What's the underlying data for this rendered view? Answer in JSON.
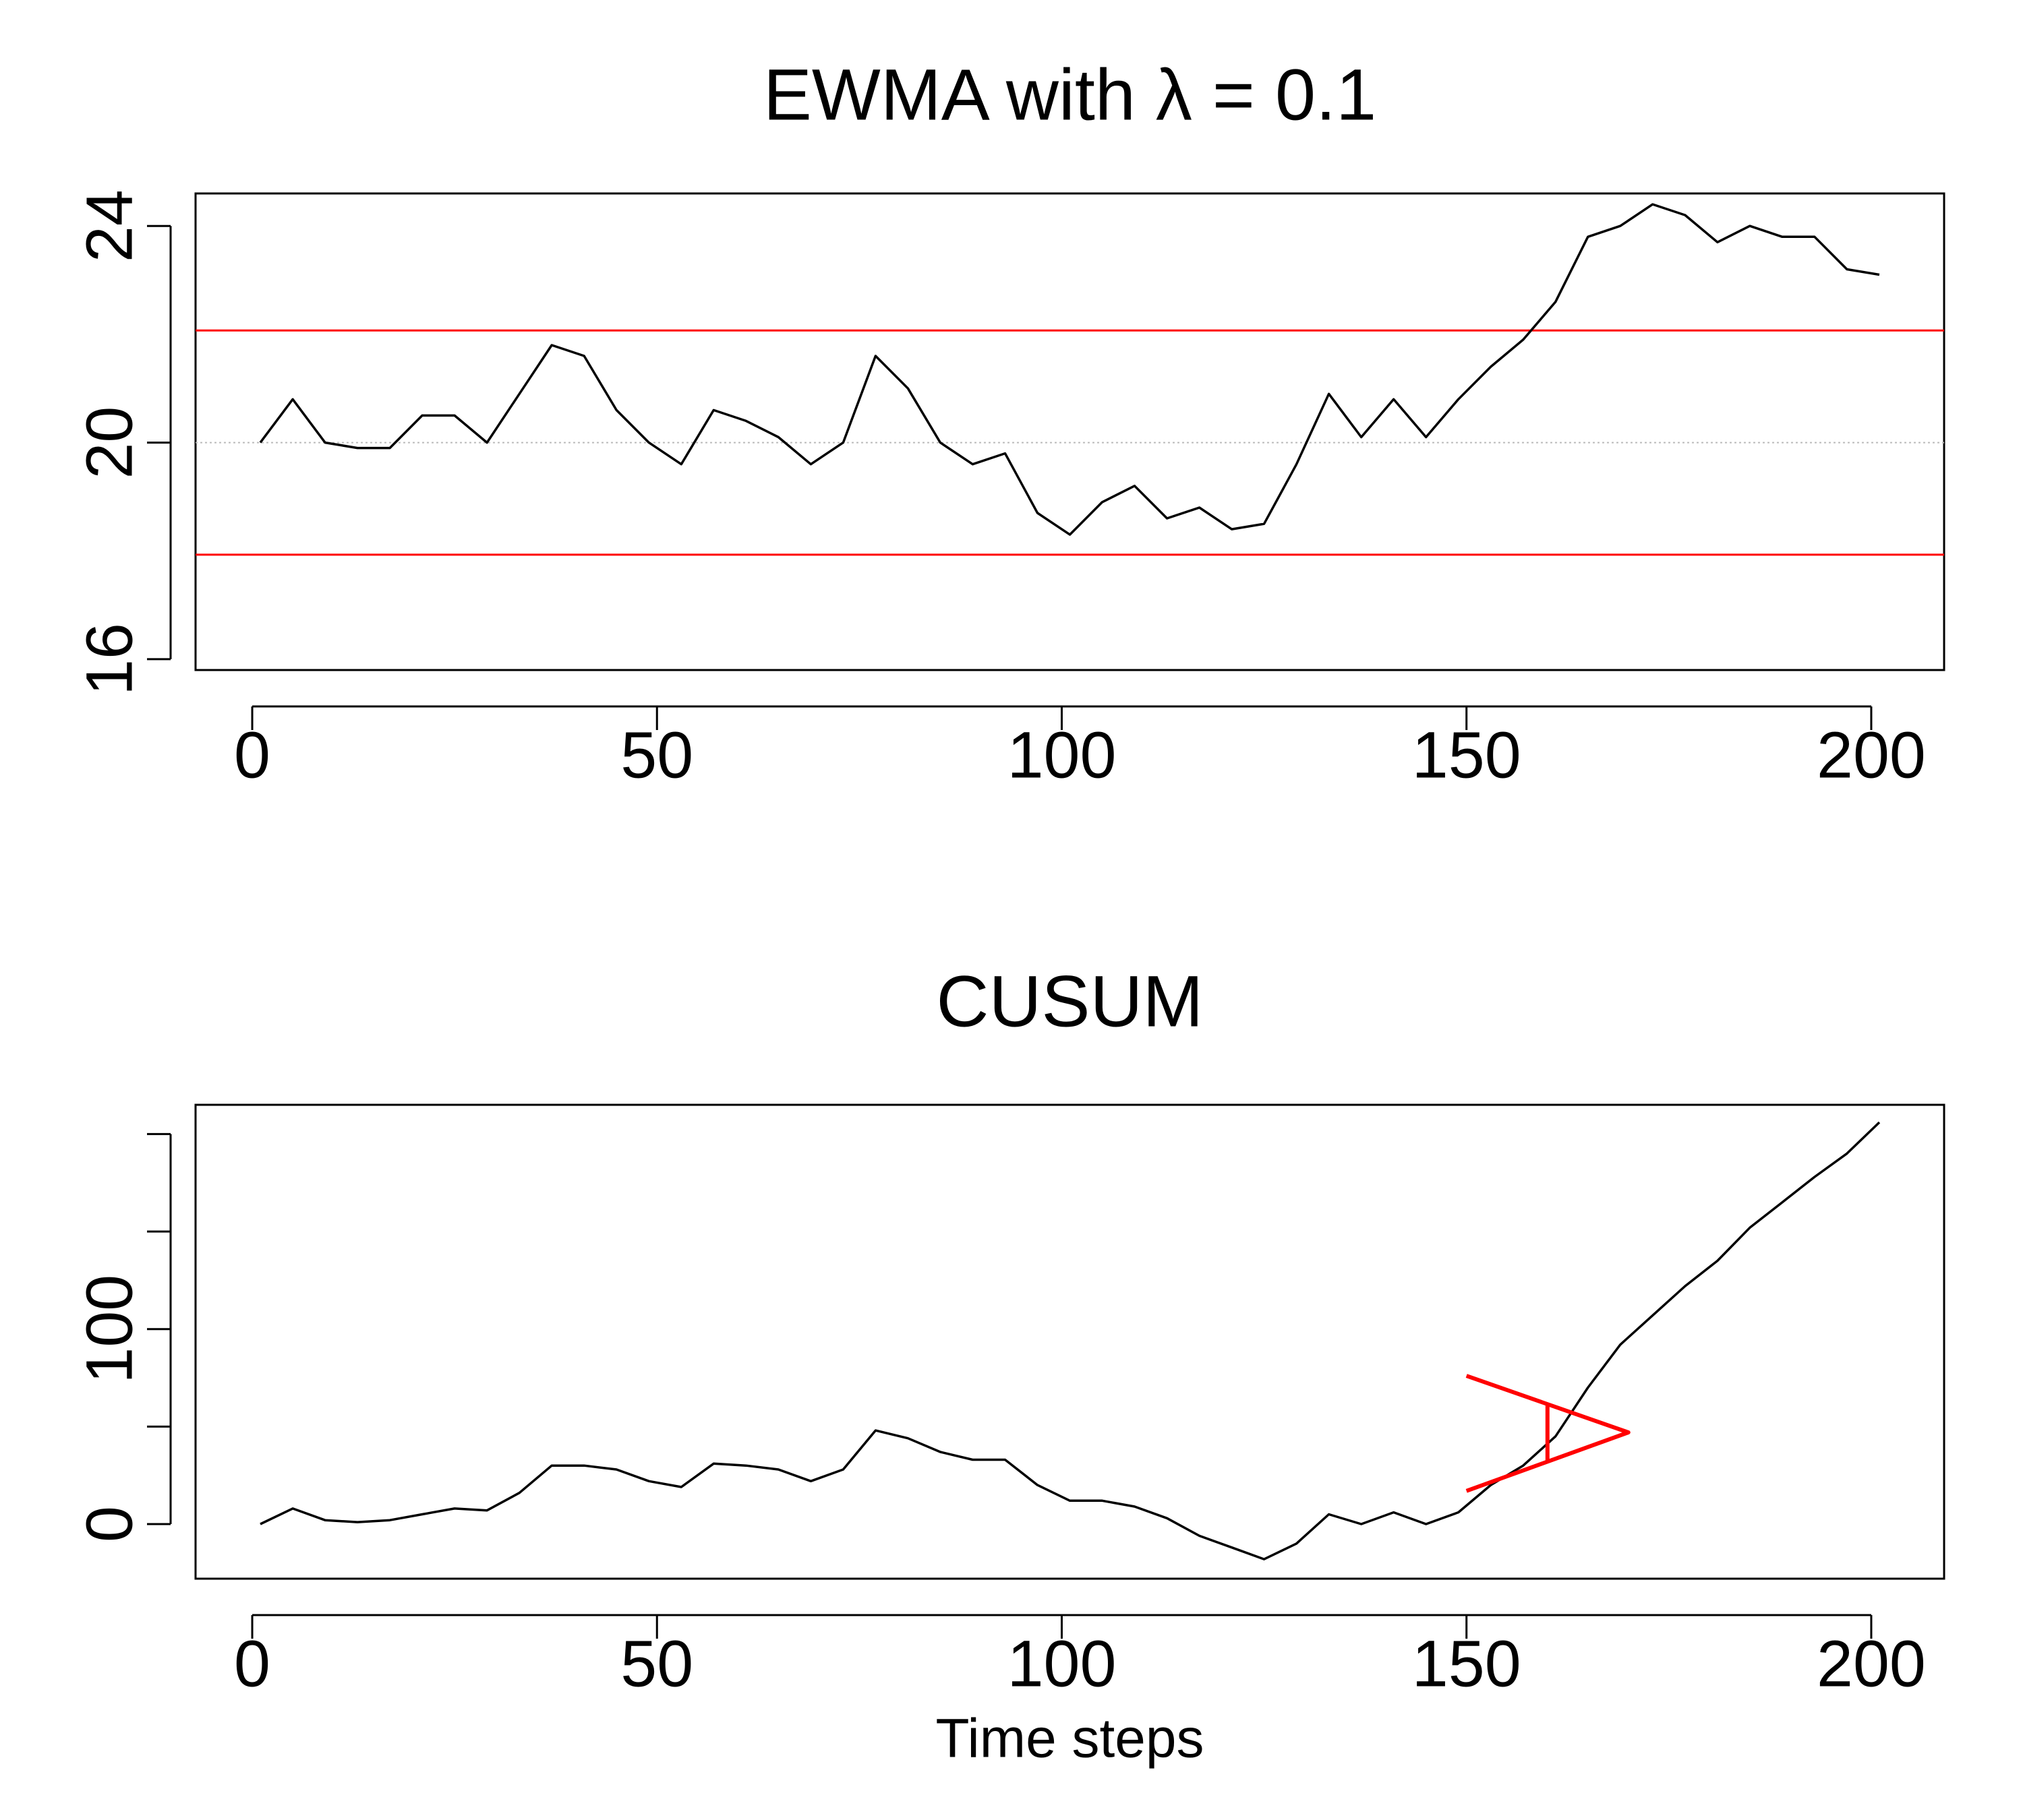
{
  "chart_data": [
    {
      "type": "line",
      "title": "EWMA with λ = 0.1",
      "x": [
        1,
        5,
        9,
        13,
        17,
        21,
        25,
        29,
        33,
        37,
        41,
        45,
        49,
        53,
        57,
        61,
        65,
        69,
        73,
        77,
        81,
        85,
        89,
        93,
        97,
        101,
        105,
        109,
        113,
        117,
        121,
        125,
        129,
        133,
        137,
        141,
        145,
        149,
        153,
        157,
        161,
        165,
        169,
        173,
        177,
        181,
        185,
        189,
        193,
        197,
        201
      ],
      "series": [
        {
          "color": "#000000",
          "values": [
            20.0,
            20.8,
            20.0,
            19.9,
            19.9,
            20.5,
            20.5,
            20.0,
            20.9,
            21.8,
            21.6,
            20.6,
            20.0,
            19.6,
            20.6,
            20.4,
            20.1,
            19.6,
            20.0,
            21.6,
            21.0,
            20.0,
            19.6,
            19.8,
            18.7,
            18.3,
            18.9,
            19.2,
            18.6,
            18.8,
            18.4,
            18.5,
            19.6,
            20.9,
            20.1,
            20.8,
            20.1,
            20.8,
            21.4,
            21.9,
            22.6,
            23.8,
            24.0,
            24.4,
            24.2,
            23.7,
            24.0,
            23.8,
            23.8,
            23.2,
            23.1
          ]
        }
      ],
      "hlines": [
        {
          "value": 22.07,
          "color": "#ff0000"
        },
        {
          "value": 17.93,
          "color": "#ff0000"
        },
        {
          "value": 20,
          "color": "#bbbbbb",
          "dash": true
        }
      ],
      "xlim": [
        -7,
        209
      ],
      "xticks": [
        0,
        50,
        100,
        150,
        200
      ],
      "ylim": [
        15.8,
        24.6
      ],
      "yticks": [
        16,
        20,
        24
      ]
    },
    {
      "type": "line",
      "title": "CUSUM",
      "xlabel": "Time steps",
      "x": [
        1,
        5,
        9,
        13,
        17,
        21,
        25,
        29,
        33,
        37,
        41,
        45,
        49,
        53,
        57,
        61,
        65,
        69,
        73,
        77,
        81,
        85,
        89,
        93,
        97,
        101,
        105,
        109,
        113,
        117,
        121,
        125,
        129,
        133,
        137,
        141,
        145,
        149,
        153,
        157,
        161,
        165,
        169,
        173,
        177,
        181,
        185,
        189,
        193,
        197,
        201
      ],
      "series": [
        {
          "color": "#000000",
          "values": [
            0,
            8,
            2,
            1,
            2,
            5,
            8,
            7,
            16,
            30,
            30,
            28,
            22,
            19,
            31,
            30,
            28,
            22,
            28,
            48,
            44,
            37,
            33,
            33,
            20,
            12,
            12,
            9,
            3,
            -6,
            -12,
            -18,
            -10,
            5,
            0,
            6,
            0,
            6,
            20,
            30,
            45,
            70,
            92,
            107,
            122,
            135,
            152,
            165,
            178,
            190,
            206
          ]
        }
      ],
      "segments": [
        {
          "color": "#ff0000",
          "x": [
            150,
            170,
            150
          ],
          "values": [
            76,
            47,
            17
          ]
        },
        {
          "color": "#ff0000",
          "x": [
            160,
            160
          ],
          "values": [
            32,
            62
          ]
        }
      ],
      "xlim": [
        -7,
        209
      ],
      "xticks": [
        0,
        50,
        100,
        150,
        200
      ],
      "ylim": [
        -28,
        215
      ],
      "yticks": [
        0,
        {
          "value": 50,
          "label": null
        },
        100,
        {
          "value": 150,
          "label": null
        },
        {
          "value": 200,
          "label": null
        }
      ]
    }
  ]
}
